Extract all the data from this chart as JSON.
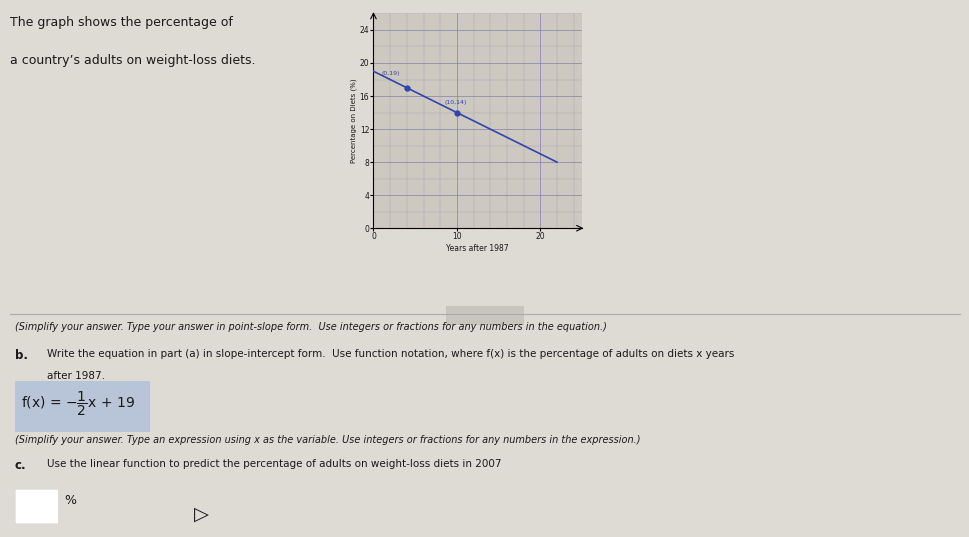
{
  "title_text1": "The graph shows the percentage of",
  "title_text2": "a country’s adults on weight-loss diets.",
  "graph_ylabel": "Percentage on Diets (%)",
  "graph_xlabel": "Years after 1987",
  "xlim": [
    0,
    25
  ],
  "ylim": [
    0,
    26
  ],
  "xticks": [
    0,
    10,
    20
  ],
  "yticks": [
    0,
    4,
    8,
    12,
    16,
    20,
    24
  ],
  "line_x": [
    0,
    22
  ],
  "line_y": [
    19,
    8
  ],
  "point1": [
    4,
    17
  ],
  "point2": [
    10,
    14
  ],
  "label1": "(0,19)",
  "label2": "(10,14)",
  "line_color": "#3344aa",
  "point_color": "#3344aa",
  "bg_color": "#cdc9c0",
  "grid_color": "#8888aa",
  "text_color": "#1a1a1a",
  "panel_bg": "#dedad4",
  "separator_color": "#aaaaaa",
  "simplify1": "(Simplify your answer. Type your answer in point-slope form.  Use integers or fractions for any numbers in the equation.)",
  "part_b": "b.",
  "part_b_text1": "Write the equation in part (a) in slope-intercept form.  Use function notation, where f(x) is the percentage of adults on diets x years",
  "part_b_text2": "after 1987.",
  "fx_text": "f(x) = −",
  "simplify2": "(Simplify your answer. Type an expression using x as the variable. Use integers or fractions for any numbers in the expression.)",
  "part_c": "c.",
  "part_c_text": "Use the linear function to predict the percentage of adults on weight-loss diets in 2007",
  "ans_pct": "%",
  "highlight_color": "#b8c4d8",
  "highlight_border": "#8899bb"
}
